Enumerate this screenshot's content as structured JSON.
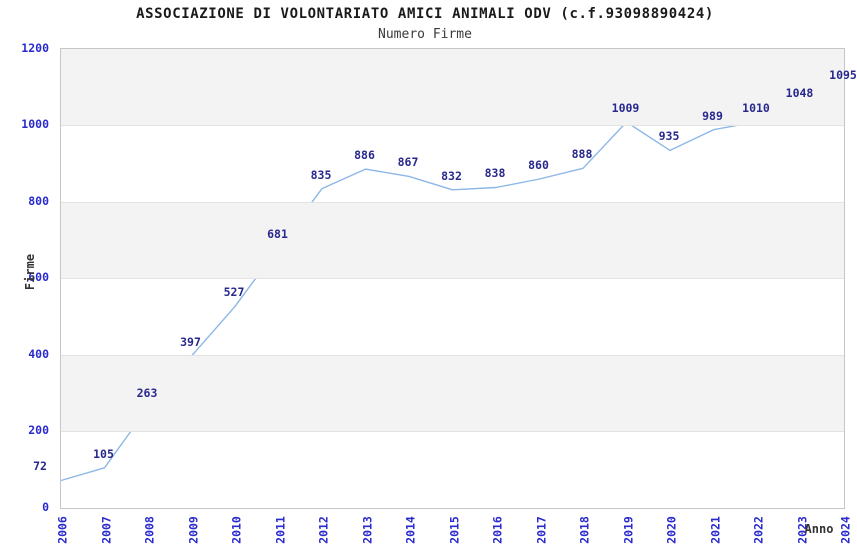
{
  "chart_data": {
    "type": "line",
    "title": "ASSOCIAZIONE DI VOLONTARIATO AMICI ANIMALI ODV (c.f.93098890424)",
    "subtitle": "Numero Firme",
    "xlabel": "Anno",
    "ylabel": "Firme",
    "categories": [
      "2006",
      "2007",
      "2008",
      "2009",
      "2010",
      "2011",
      "2012",
      "2013",
      "2014",
      "2015",
      "2016",
      "2017",
      "2018",
      "2019",
      "2020",
      "2021",
      "2022",
      "2023",
      "2024"
    ],
    "values": [
      72,
      105,
      263,
      397,
      527,
      681,
      835,
      886,
      867,
      832,
      838,
      860,
      888,
      1009,
      935,
      989,
      1010,
      1048,
      1095
    ],
    "data_labels_visible": true,
    "ylim": [
      0,
      1200
    ],
    "yticks": [
      0,
      200,
      400,
      600,
      800,
      1000,
      1200
    ],
    "grid": "alternating-horizontal-bands",
    "legend": "none",
    "markers": "none",
    "colors": {
      "line": "#8cb7e7",
      "tick_label": "#2a2ace",
      "data_label": "#28288f",
      "band": "#f3f3f3",
      "gridline": "#e3e3e3",
      "plot_border": "#c6c6c6",
      "title": "#1a1a1a",
      "subtitle": "#3a3a3a",
      "axis_title": "#333333",
      "background": "#ffffff"
    }
  }
}
